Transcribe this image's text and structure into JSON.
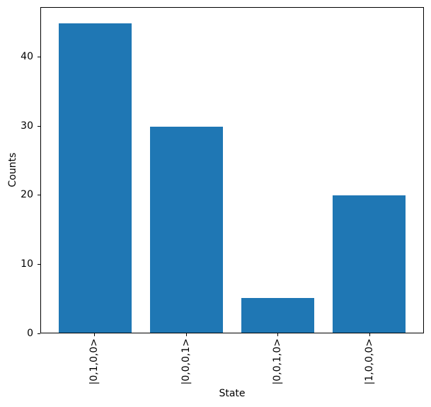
{
  "chart_data": {
    "type": "bar",
    "categories": [
      "|0,1,0,0>",
      "|0,0,0,1>",
      "|0,0,1,0>",
      "|1,0,0,0>"
    ],
    "values": [
      45,
      30,
      5,
      20
    ],
    "title": "",
    "xlabel": "State",
    "ylabel": "Counts",
    "ylim": [
      0,
      47.25
    ],
    "yticks": [
      0,
      10,
      20,
      30,
      40
    ],
    "bar_color": "#1f77b4",
    "axis_color": "#000000",
    "background_color": "#ffffff",
    "bar_width_fraction": 0.8,
    "x_margin_units": 0.59,
    "x_tick_rotation_deg": 90,
    "grid": false,
    "legend": null
  }
}
